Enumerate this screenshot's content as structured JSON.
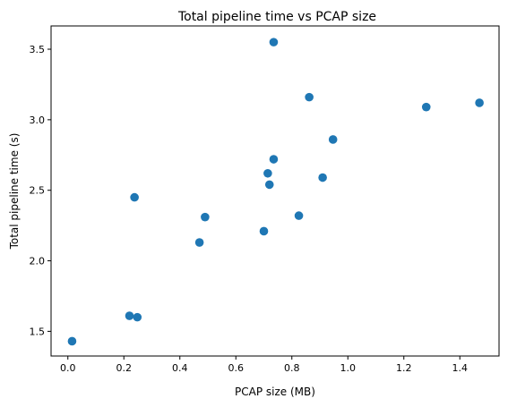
{
  "chart_data": {
    "type": "scatter",
    "title": "Total pipeline time vs PCAP size",
    "xlabel": "PCAP size (MB)",
    "ylabel": "Total pipeline time (s)",
    "xlim": [
      -0.06,
      1.54
    ],
    "ylim": [
      1.325,
      3.665
    ],
    "xticks": [
      0.0,
      0.2,
      0.4,
      0.6,
      0.8,
      1.0,
      1.2,
      1.4
    ],
    "xtick_labels": [
      "0.0",
      "0.2",
      "0.4",
      "0.6",
      "0.8",
      "1.0",
      "1.2",
      "1.4"
    ],
    "yticks": [
      1.5,
      2.0,
      2.5,
      3.0,
      3.5
    ],
    "ytick_labels": [
      "1.5",
      "2.0",
      "2.5",
      "3.0",
      "3.5"
    ],
    "grid": false,
    "marker_color": "#1f77b4",
    "points": [
      {
        "x": 0.015,
        "y": 1.43
      },
      {
        "x": 0.22,
        "y": 1.61
      },
      {
        "x": 0.248,
        "y": 1.6
      },
      {
        "x": 0.238,
        "y": 2.45
      },
      {
        "x": 0.47,
        "y": 2.13
      },
      {
        "x": 0.49,
        "y": 2.31
      },
      {
        "x": 0.7,
        "y": 2.21
      },
      {
        "x": 0.714,
        "y": 2.62
      },
      {
        "x": 0.72,
        "y": 2.54
      },
      {
        "x": 0.735,
        "y": 2.72
      },
      {
        "x": 0.735,
        "y": 3.55
      },
      {
        "x": 0.825,
        "y": 2.32
      },
      {
        "x": 0.862,
        "y": 3.16
      },
      {
        "x": 0.91,
        "y": 2.59
      },
      {
        "x": 0.947,
        "y": 2.86
      },
      {
        "x": 1.28,
        "y": 3.09
      },
      {
        "x": 1.47,
        "y": 3.12
      }
    ]
  }
}
